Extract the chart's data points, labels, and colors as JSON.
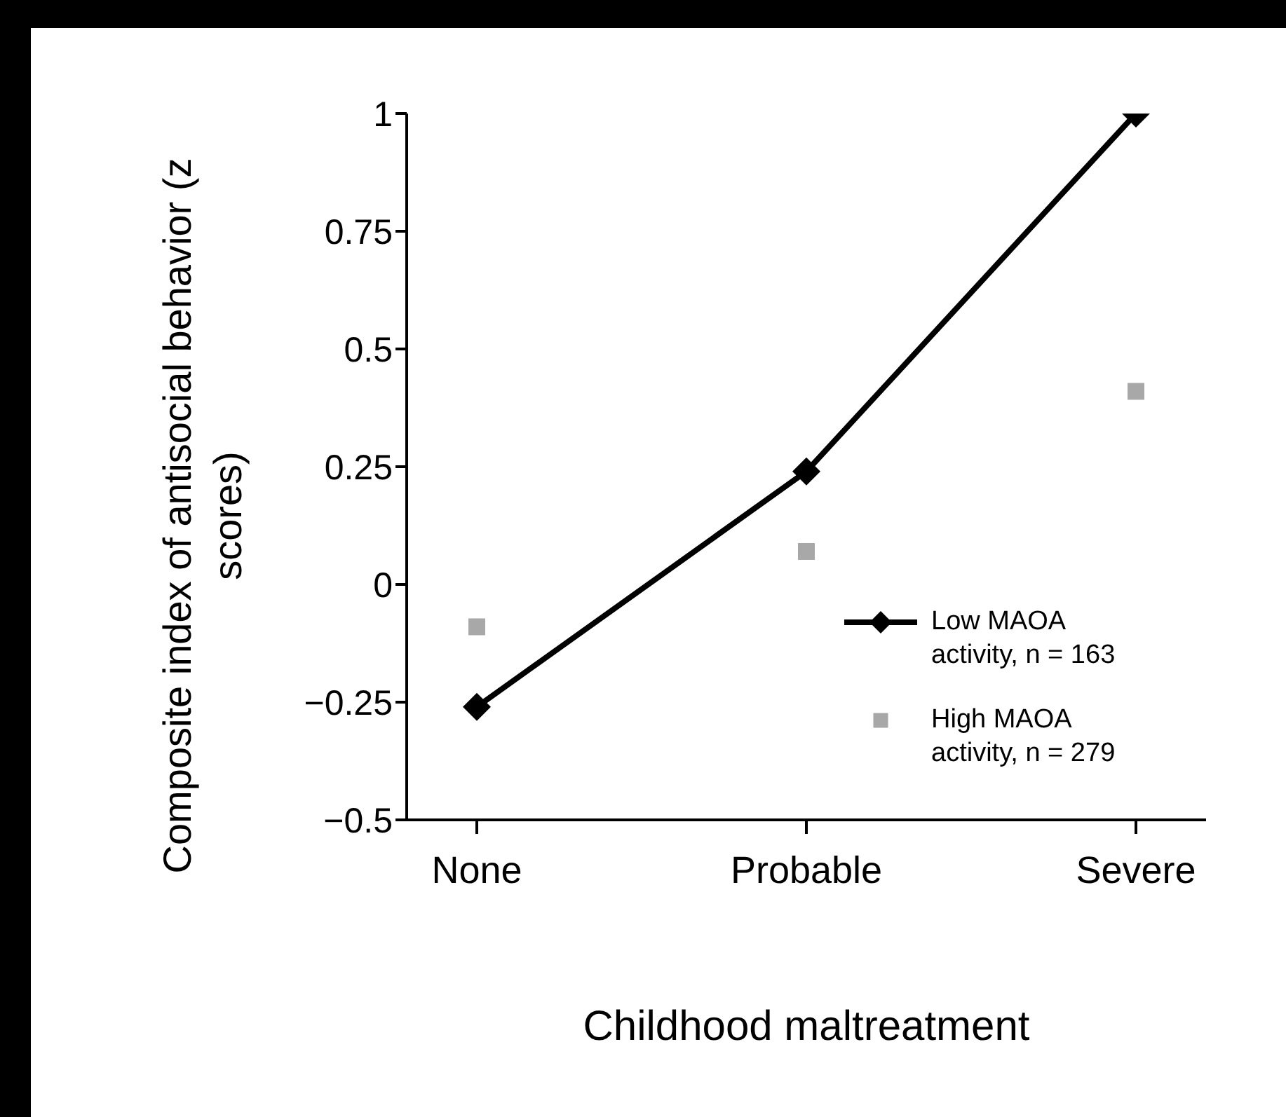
{
  "chart_data": {
    "type": "line",
    "xlabel": "Childhood maltreatment",
    "ylabel": "Composite index of antisocial behavior (z scores)",
    "categories": [
      "None",
      "Probable",
      "Severe"
    ],
    "series": [
      {
        "name": "Low MAOA activity, n = 163",
        "marker": "diamond",
        "line_style": "solid",
        "color": "#000000",
        "values": [
          -0.26,
          0.24,
          1.0
        ]
      },
      {
        "name": "High MAOA activity, n = 279",
        "type": "scatter",
        "marker": "square",
        "color": "#a8a8a8",
        "values": [
          -0.09,
          0.07,
          0.41
        ]
      }
    ],
    "ylim": [
      -0.5,
      1
    ],
    "yticks": [
      {
        "value": -0.5,
        "label": "−0.5"
      },
      {
        "value": -0.25,
        "label": "−0.25"
      },
      0,
      0.25,
      0.5,
      0.75,
      1
    ],
    "grid": false,
    "legend": "bottom right"
  }
}
